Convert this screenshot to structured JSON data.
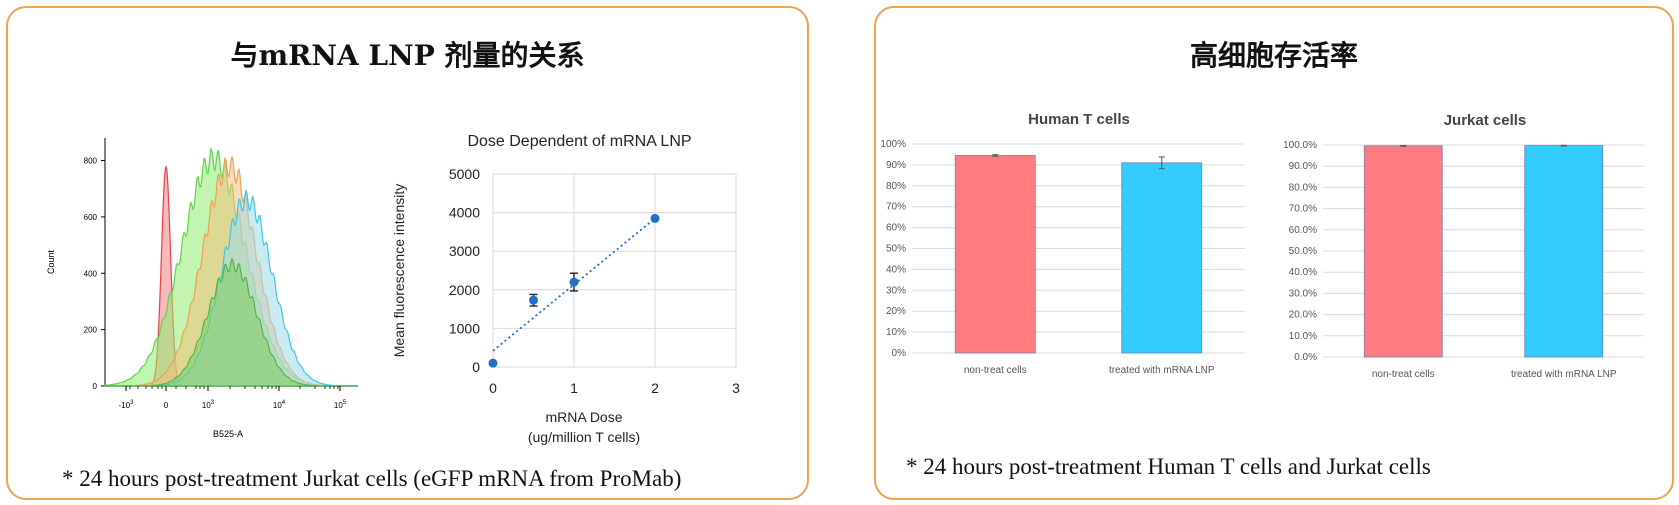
{
  "panels": {
    "left": {
      "title": "与mRNA LNP 剂量的关系",
      "footnote": "* 24 hours post-treatment Jurkat cells (eGFP mRNA from ProMab)"
    },
    "right": {
      "title": "高细胞存活率",
      "footnote": "* 24 hours post-treatment Human T cells and Jurkat cells"
    }
  },
  "chart_data": [
    {
      "type": "area",
      "xlabel": "B525-A",
      "ylabel": "Count",
      "yticks": [
        "0",
        "200",
        "400",
        "600",
        "800"
      ],
      "ylim": [
        0,
        880
      ],
      "xticks": [
        {
          "base": "-10",
          "exp": "3",
          "value": -1000
        },
        {
          "base": "0",
          "exp": "",
          "value": 0
        },
        {
          "base": "10",
          "exp": "3",
          "value": 1000
        },
        {
          "base": "10",
          "exp": "4",
          "value": 10000
        },
        {
          "base": "10",
          "exp": "5",
          "value": 100000
        }
      ],
      "series": [
        {
          "color": "#e8404a",
          "fill": "#f08080",
          "peak_x": 0,
          "peak_count": 780,
          "spread": 0.08
        },
        {
          "color": "#5fd44a",
          "fill": "#90ee70",
          "peak_x": 1200,
          "peak_count": 805,
          "spread": 0.45
        },
        {
          "color": "#f0a050",
          "fill": "#f5c080",
          "peak_x": 2000,
          "peak_count": 780,
          "spread": 0.38
        },
        {
          "color": "#3ac6e8",
          "fill": "#9ddde8",
          "peak_x": 3500,
          "peak_count": 660,
          "spread": 0.36
        },
        {
          "color": "#4cb84c",
          "fill": "#7cd060",
          "peak_x": 2200,
          "peak_count": 430,
          "spread": 0.34
        }
      ]
    },
    {
      "type": "scatter",
      "title": "Dose Dependent of mRNA LNP",
      "xlabel": [
        "mRNA Dose",
        "(ug/million T cells)"
      ],
      "ylabel": "Mean fluorescence intensity",
      "xticks": [
        0,
        1,
        2,
        3
      ],
      "yticks": [
        0,
        1000,
        2000,
        3000,
        4000,
        5000
      ],
      "xlim": [
        0,
        3
      ],
      "ylim": [
        0,
        5000
      ],
      "grid": true,
      "color": "#1f6fc8",
      "x": [
        0,
        0.5,
        1,
        2
      ],
      "y": [
        100,
        1730,
        2200,
        3850
      ],
      "error": [
        0,
        150,
        230,
        0
      ],
      "trendline": {
        "x": [
          0,
          2
        ],
        "y": [
          420,
          3850
        ],
        "style": "dotted"
      }
    },
    {
      "type": "bar",
      "title": "Human T cells",
      "categories": [
        "non-treat cells",
        "treated with mRNA LNP"
      ],
      "values": [
        94.5,
        91.0
      ],
      "error": [
        0.4,
        2.8
      ],
      "colors": [
        "#ff7b7f",
        "#33ccff"
      ],
      "ylim": [
        0,
        100
      ],
      "yticks": [
        "0%",
        "10%",
        "20%",
        "30%",
        "40%",
        "50%",
        "60%",
        "70%",
        "80%",
        "90%",
        "100%"
      ],
      "grid": true
    },
    {
      "type": "bar",
      "title": "Jurkat cells",
      "categories": [
        "non-treat cells",
        "treated with mRNA LNP"
      ],
      "values": [
        99.6,
        99.7
      ],
      "error": [
        0.15,
        0.15
      ],
      "colors": [
        "#ff7b7f",
        "#33ccff"
      ],
      "ylim": [
        0,
        100
      ],
      "yticks": [
        "0.0%",
        "10.0%",
        "20.0%",
        "30.0%",
        "40.0%",
        "50.0%",
        "60.0%",
        "70.0%",
        "80.0%",
        "90.0%",
        "100.0%"
      ],
      "grid": true
    }
  ]
}
